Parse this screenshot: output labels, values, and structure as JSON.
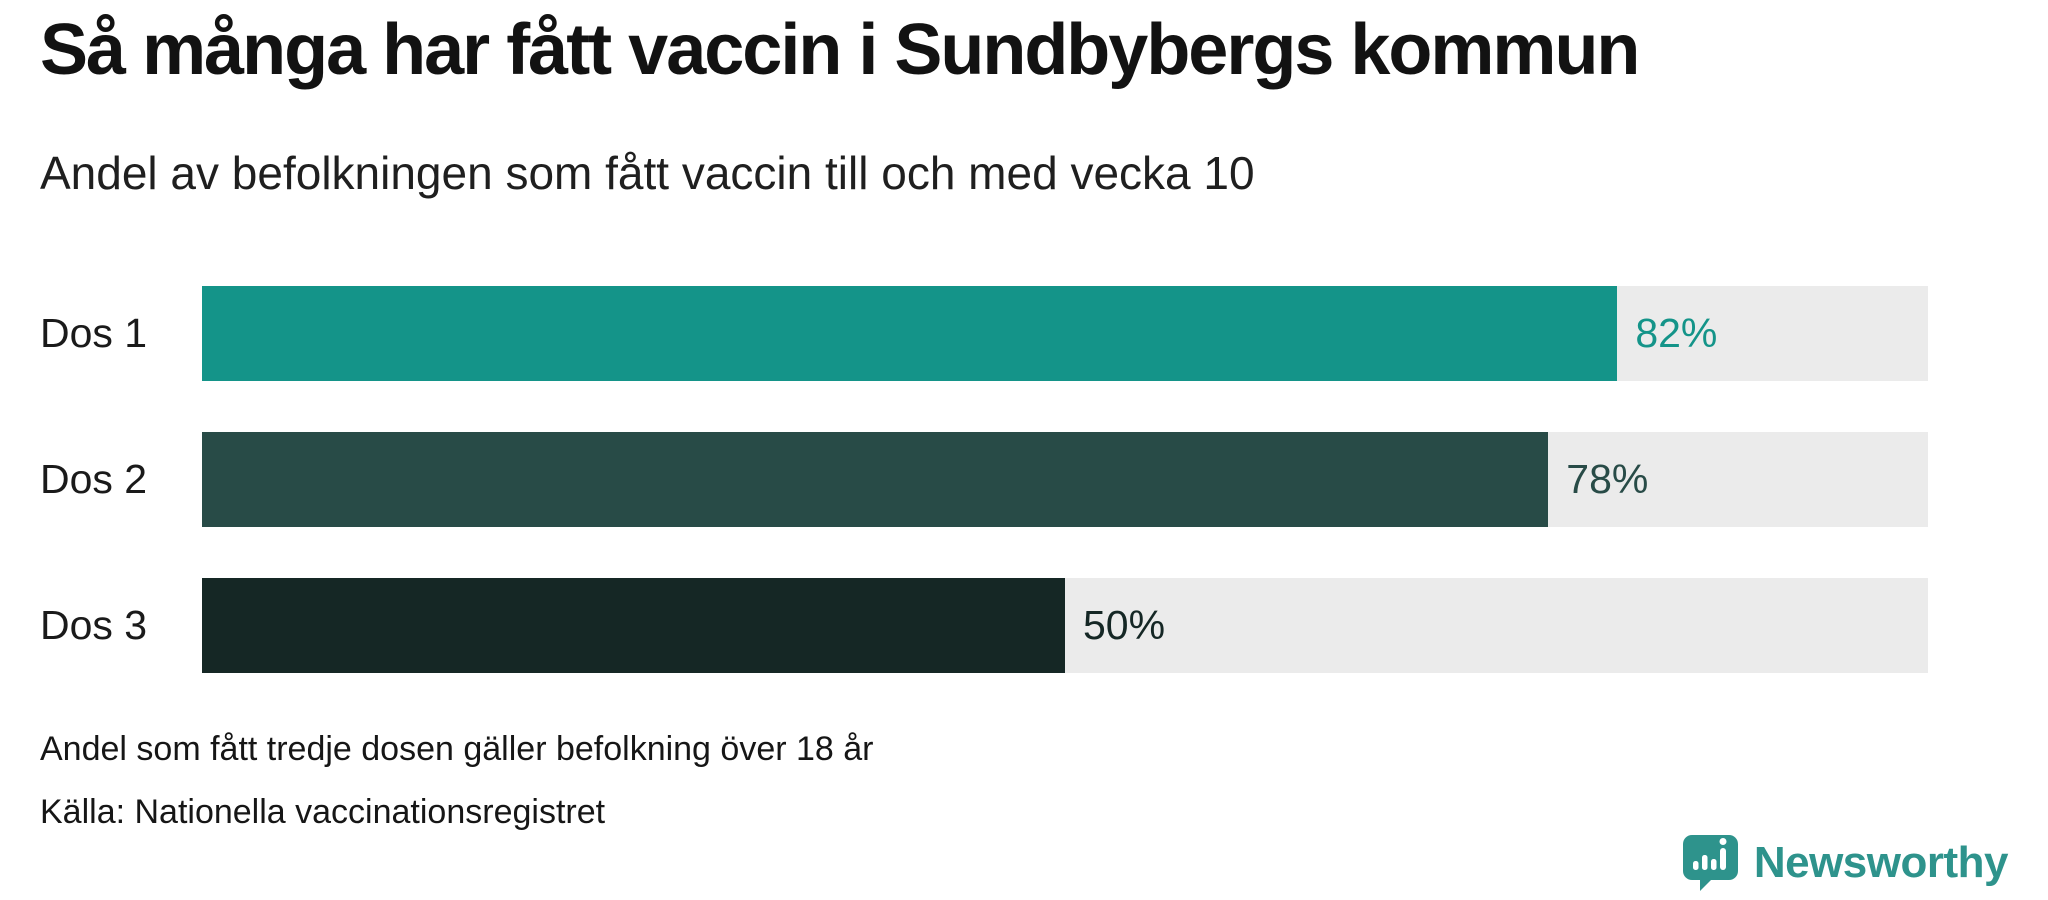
{
  "header": {
    "title": "Så många har fått vaccin i Sundbybergs kommun",
    "subtitle": "Andel av befolkningen som fått vaccin till och med vecka 10"
  },
  "chart_data": {
    "type": "bar",
    "orientation": "horizontal",
    "title": "Så många har fått vaccin i Sundbybergs kommun",
    "subtitle": "Andel av befolkningen som fått vaccin till och med vecka 10",
    "categories": [
      "Dos 1",
      "Dos 2",
      "Dos 3"
    ],
    "values": [
      82,
      78,
      50
    ],
    "value_labels": [
      "82%",
      "78%",
      "50%"
    ],
    "bar_colors": [
      "#149489",
      "#284b47",
      "#152725"
    ],
    "track_color": "#ebebeb",
    "xlim": [
      0,
      100
    ],
    "grid": false,
    "legend": false
  },
  "footer": {
    "note": "Andel som fått tredje dosen gäller befolkning över 18 år",
    "source": "Källa: Nationella vaccinationsregistret"
  },
  "branding": {
    "logo_text": "Newsworthy",
    "logo_color": "#2e938c",
    "logo_icon": "speech-bubble-bar-chart-icon"
  }
}
